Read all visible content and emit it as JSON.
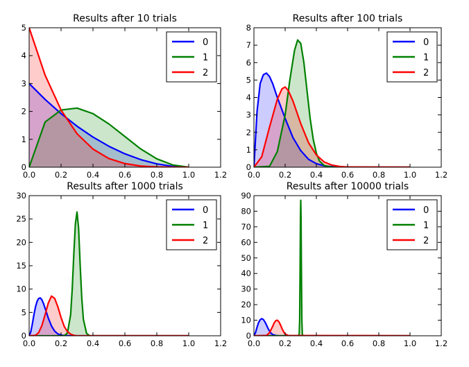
{
  "chart_data": [
    {
      "type": "area",
      "title": "Results after 10 trials",
      "xlim": [
        0,
        1.2
      ],
      "ylim": [
        0,
        5
      ],
      "xticks": [
        "0.0",
        "0.2",
        "0.4",
        "0.6",
        "0.8",
        "1.0",
        "1.2"
      ],
      "yticks": [
        "0",
        "1",
        "2",
        "3",
        "4",
        "5"
      ],
      "legend": {
        "placement": "top-right",
        "entries": [
          "0",
          "1",
          "2"
        ]
      },
      "series": [
        {
          "name": "0",
          "color": "#0000ff",
          "x": [
            0,
            0.1,
            0.2,
            0.3,
            0.4,
            0.5,
            0.6,
            0.7,
            0.8,
            0.9,
            1.0
          ],
          "y": [
            3.0,
            2.43,
            1.92,
            1.47,
            1.08,
            0.75,
            0.48,
            0.27,
            0.12,
            0.03,
            0
          ]
        },
        {
          "name": "1",
          "color": "#008000",
          "x": [
            0,
            0.1,
            0.2,
            0.3,
            0.4,
            0.5,
            0.6,
            0.7,
            0.8,
            0.9,
            1.0
          ],
          "y": [
            0,
            1.62,
            2.05,
            2.12,
            1.92,
            1.55,
            1.1,
            0.65,
            0.3,
            0.08,
            0
          ]
        },
        {
          "name": "2",
          "color": "#ff0000",
          "x": [
            0,
            0.1,
            0.2,
            0.3,
            0.4,
            0.5,
            0.6,
            0.7,
            0.8,
            0.9,
            1.0
          ],
          "y": [
            5.0,
            3.3,
            2.05,
            1.2,
            0.65,
            0.31,
            0.13,
            0.04,
            0.01,
            0,
            0
          ]
        }
      ]
    },
    {
      "type": "area",
      "title": "Results after 100 trials",
      "xlim": [
        0,
        1.2
      ],
      "ylim": [
        0,
        8
      ],
      "xticks": [
        "0.0",
        "0.2",
        "0.4",
        "0.6",
        "0.8",
        "1.0",
        "1.2"
      ],
      "yticks": [
        "0",
        "1",
        "2",
        "3",
        "4",
        "5",
        "6",
        "7",
        "8"
      ],
      "legend": {
        "placement": "top-right",
        "entries": [
          "0",
          "1",
          "2"
        ]
      },
      "series": [
        {
          "name": "0",
          "color": "#0000ff",
          "x": [
            0,
            0.02,
            0.04,
            0.06,
            0.08,
            0.1,
            0.12,
            0.15,
            0.2,
            0.25,
            0.3,
            0.35,
            0.4,
            0.45,
            0.5,
            0.55,
            0.6,
            1.0
          ],
          "y": [
            0,
            3.2,
            4.8,
            5.3,
            5.4,
            5.2,
            4.8,
            4.0,
            2.8,
            1.7,
            0.95,
            0.45,
            0.2,
            0.08,
            0.03,
            0.01,
            0,
            0
          ]
        },
        {
          "name": "1",
          "color": "#008000",
          "x": [
            0,
            0.1,
            0.15,
            0.2,
            0.23,
            0.26,
            0.28,
            0.3,
            0.32,
            0.34,
            0.36,
            0.38,
            0.4,
            0.42,
            0.45,
            0.5,
            1.0
          ],
          "y": [
            0,
            0.05,
            0.9,
            3.0,
            5.0,
            6.7,
            7.3,
            7.1,
            6.0,
            4.4,
            2.8,
            1.6,
            0.8,
            0.35,
            0.1,
            0,
            0
          ]
        },
        {
          "name": "2",
          "color": "#ff0000",
          "x": [
            0,
            0.05,
            0.1,
            0.15,
            0.18,
            0.2,
            0.22,
            0.25,
            0.3,
            0.35,
            0.4,
            0.45,
            0.5,
            0.55,
            0.6,
            1.0
          ],
          "y": [
            0,
            0.6,
            2.3,
            3.9,
            4.5,
            4.6,
            4.4,
            3.8,
            2.5,
            1.4,
            0.7,
            0.3,
            0.12,
            0.04,
            0.01,
            0
          ]
        }
      ]
    },
    {
      "type": "area",
      "title": "Results after 1000 trials",
      "xlim": [
        0,
        1.2
      ],
      "ylim": [
        0,
        30
      ],
      "xticks": [
        "0.0",
        "0.2",
        "0.4",
        "0.6",
        "0.8",
        "1.0",
        "1.2"
      ],
      "yticks": [
        "0",
        "5",
        "10",
        "15",
        "20",
        "25",
        "30"
      ],
      "legend": {
        "placement": "top-right",
        "entries": [
          "0",
          "1",
          "2"
        ]
      },
      "series": [
        {
          "name": "0",
          "color": "#0000ff",
          "x": [
            0,
            0.01,
            0.02,
            0.03,
            0.04,
            0.05,
            0.06,
            0.07,
            0.08,
            0.09,
            0.1,
            0.12,
            0.14,
            0.16,
            0.18,
            0.2,
            0.22,
            0.25,
            1.0
          ],
          "y": [
            0,
            0.8,
            2.5,
            4.5,
            6.2,
            7.4,
            8.0,
            8.1,
            7.7,
            6.9,
            5.9,
            3.8,
            2.1,
            1.0,
            0.4,
            0.15,
            0.05,
            0,
            0
          ]
        },
        {
          "name": "1",
          "color": "#008000",
          "x": [
            0,
            0.22,
            0.24,
            0.26,
            0.27,
            0.28,
            0.29,
            0.3,
            0.31,
            0.32,
            0.33,
            0.34,
            0.36,
            0.38,
            1.0
          ],
          "y": [
            0,
            0,
            0.6,
            4.5,
            10.0,
            17.5,
            24.0,
            26.5,
            23.0,
            15.0,
            8.0,
            3.5,
            0.5,
            0,
            0
          ]
        },
        {
          "name": "2",
          "color": "#ff0000",
          "x": [
            0,
            0.04,
            0.06,
            0.08,
            0.1,
            0.12,
            0.14,
            0.16,
            0.18,
            0.2,
            0.22,
            0.24,
            0.26,
            0.28,
            0.3,
            1.0
          ],
          "y": [
            0,
            0.1,
            0.7,
            2.2,
            4.5,
            7.0,
            8.5,
            8.0,
            6.2,
            3.9,
            2.0,
            0.9,
            0.35,
            0.1,
            0,
            0
          ]
        }
      ]
    },
    {
      "type": "area",
      "title": "Results after 10000 trials",
      "xlim": [
        0,
        1.2
      ],
      "ylim": [
        0,
        90
      ],
      "xticks": [
        "0.0",
        "0.2",
        "0.4",
        "0.6",
        "0.8",
        "1.0",
        "1.2"
      ],
      "yticks": [
        "0",
        "10",
        "20",
        "30",
        "40",
        "50",
        "60",
        "70",
        "80",
        "90"
      ],
      "legend": {
        "placement": "top-right",
        "entries": [
          "0",
          "1",
          "2"
        ]
      },
      "series": [
        {
          "name": "0",
          "color": "#0000ff",
          "x": [
            0,
            0.01,
            0.02,
            0.03,
            0.04,
            0.05,
            0.06,
            0.07,
            0.08,
            0.09,
            0.1,
            0.11,
            0.12,
            0.14,
            0.16,
            1.0
          ],
          "y": [
            0,
            2.0,
            5.5,
            8.5,
            10.3,
            11.0,
            10.5,
            9.0,
            7.0,
            4.8,
            3.0,
            1.6,
            0.8,
            0.2,
            0,
            0
          ]
        },
        {
          "name": "1",
          "color": "#008000",
          "x": [
            0,
            0.285,
            0.29,
            0.293,
            0.296,
            0.298,
            0.3,
            0.302,
            0.304,
            0.307,
            0.31,
            0.315,
            1.0
          ],
          "y": [
            0,
            0,
            1.0,
            10.0,
            45.0,
            75.0,
            87.0,
            75.0,
            45.0,
            10.0,
            1.0,
            0,
            0
          ]
        },
        {
          "name": "2",
          "color": "#ff0000",
          "x": [
            0,
            0.08,
            0.1,
            0.12,
            0.13,
            0.14,
            0.15,
            0.16,
            0.17,
            0.18,
            0.19,
            0.2,
            0.22,
            1.0
          ],
          "y": [
            0,
            0.2,
            2.0,
            6.0,
            8.3,
            9.7,
            10.0,
            9.0,
            7.0,
            4.6,
            2.6,
            1.2,
            0.2,
            0
          ]
        }
      ]
    }
  ]
}
